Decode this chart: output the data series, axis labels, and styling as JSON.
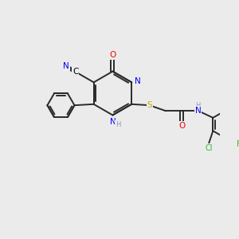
{
  "background_color": "#ebebeb",
  "figsize": [
    3.0,
    3.0
  ],
  "dpi": 100,
  "atom_colors": {
    "C": "#000000",
    "N": "#0000ff",
    "O": "#ff0000",
    "S": "#ccaa00",
    "F": "#33bb33",
    "Cl": "#33bb33",
    "H": "#8899aa"
  },
  "bond_color": "#2a2a2a",
  "bond_width": 1.4,
  "font_size_atom": 7.5,
  "font_size_small": 6.0,
  "xlim": [
    0,
    10
  ],
  "ylim": [
    0,
    10
  ]
}
